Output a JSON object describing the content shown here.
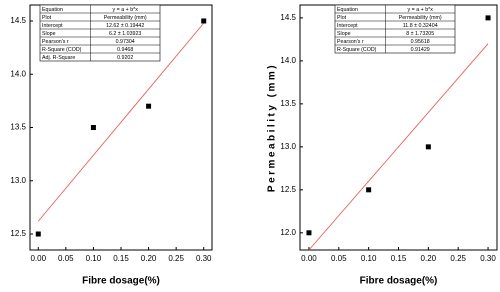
{
  "chart_data": [
    {
      "type": "scatter",
      "xlabel": "Fibre dosage(%)",
      "x": [
        0,
        0.1,
        0.2,
        0.3
      ],
      "values": [
        12.5,
        13.5,
        13.7,
        14.5
      ],
      "color": "#000000",
      "fit_x": [
        0,
        0.3
      ],
      "fit_values": [
        12.62,
        14.48
      ],
      "fit_color": "#e8605a",
      "xlim": [
        -0.015,
        0.315
      ],
      "ylim": [
        12.35,
        14.65
      ],
      "xticks": [
        {
          "value": 0,
          "label": "0.00"
        },
        0.05,
        {
          "value": 0.1,
          "label": "0.10"
        },
        0.15,
        {
          "value": 0.2,
          "label": "0.20"
        },
        0.25,
        {
          "value": 0.3,
          "label": "0.30"
        }
      ],
      "yticks": [
        12.5,
        {
          "value": 13,
          "label": "13.0"
        },
        13.5,
        {
          "value": 14,
          "label": "14.0"
        },
        14.5
      ],
      "table": [
        [
          "Equation",
          "y = a + b*x"
        ],
        [
          "Plot",
          "Permeability (mm)"
        ],
        [
          "Intercept",
          "12.62 ± 0.19442"
        ],
        [
          "Slope",
          "6.2 ± 1.03923"
        ],
        [
          "Pearson's r",
          "0.97304"
        ],
        [
          "R-Square (COD)",
          "0.9468"
        ],
        [
          "Adj. R-Square",
          "0.9202"
        ]
      ]
    },
    {
      "type": "scatter",
      "xlabel": "Fibre dosage(%)",
      "ylabel": "Permeability (mm)",
      "x": [
        0,
        0.1,
        0.2,
        0.3
      ],
      "values": [
        12.0,
        12.5,
        13.0,
        14.5
      ],
      "color": "#000000",
      "fit_x": [
        0,
        0.3
      ],
      "fit_values": [
        11.8,
        14.2
      ],
      "fit_color": "#e8605a",
      "xlim": [
        -0.015,
        0.315
      ],
      "ylim": [
        11.8,
        14.65
      ],
      "xticks": [
        {
          "value": 0,
          "label": "0.00"
        },
        0.05,
        {
          "value": 0.1,
          "label": "0.10"
        },
        0.15,
        {
          "value": 0.2,
          "label": "0.20"
        },
        0.25,
        {
          "value": 0.3,
          "label": "0.30"
        }
      ],
      "yticks": [
        {
          "value": 12,
          "label": "12.0"
        },
        12.5,
        {
          "value": 13,
          "label": "13.0"
        },
        13.5,
        {
          "value": 14,
          "label": "14.0"
        },
        14.5
      ],
      "table": [
        [
          "Equation",
          "y = a + b*x"
        ],
        [
          "Plot",
          "Permeability (mm)"
        ],
        [
          "Intercept",
          "11.8 ± 0.32404"
        ],
        [
          "Slope",
          "8 ± 1.73205"
        ],
        [
          "Pearson's r",
          "0.95618"
        ],
        [
          "R-Square (COD)",
          "0.91429"
        ]
      ]
    }
  ]
}
